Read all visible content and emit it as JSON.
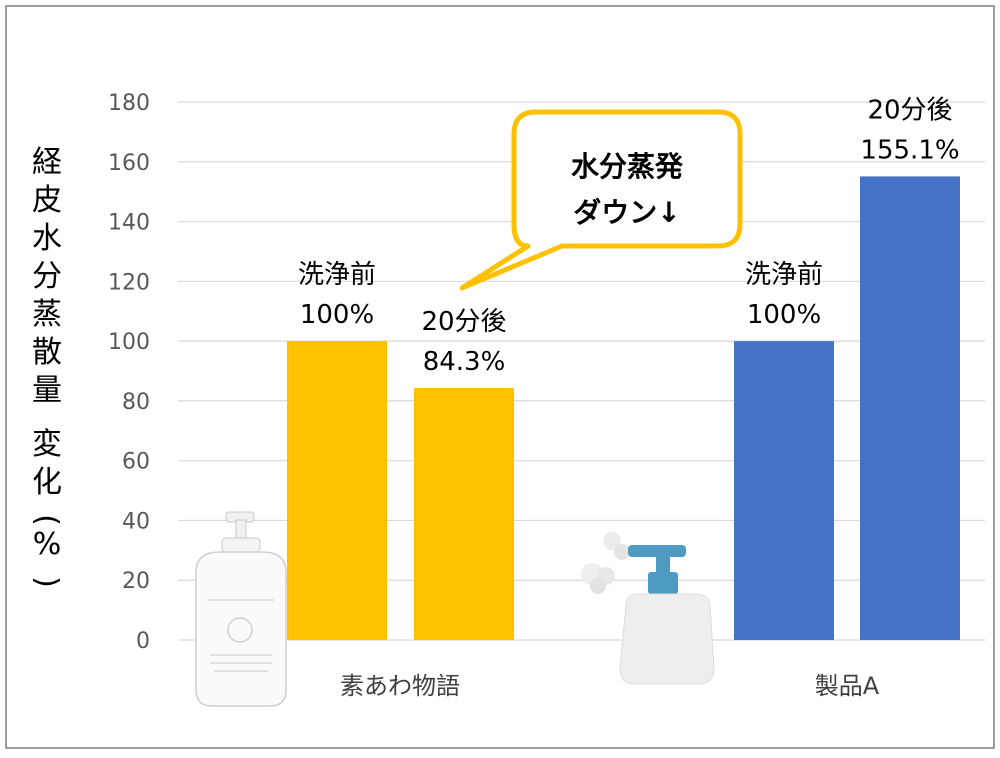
{
  "chart_data": {
    "type": "bar",
    "title": "",
    "xlabel": "",
    "ylabel": "経皮水分蒸散量　変化(%)",
    "ylim": [
      0,
      180
    ],
    "yticks": [
      0,
      20,
      40,
      60,
      80,
      100,
      120,
      140,
      160,
      180
    ],
    "grid": true,
    "legend": "none",
    "categories": [
      "素あわ物語",
      "製品A"
    ],
    "bars": [
      {
        "group": "素あわ物語",
        "label": "洗浄前",
        "value": 100,
        "value_label": "100%",
        "color": "#FFC000"
      },
      {
        "group": "素あわ物語",
        "label": "20分後",
        "value": 84.3,
        "value_label": "84.3%",
        "color": "#FFC000"
      },
      {
        "group": "製品A",
        "label": "洗浄前",
        "value": 100,
        "value_label": "100%",
        "color": "#4472C4"
      },
      {
        "group": "製品A",
        "label": "20分後",
        "value": 155.1,
        "value_label": "155.1%",
        "color": "#4472C4"
      }
    ],
    "annotation": {
      "lines": [
        "水分蒸発",
        "ダウン↓"
      ],
      "border_color": "#FFC000"
    }
  },
  "icons": {
    "bottle_1": "foam-pump-bottle-icon",
    "bottle_2": "pump-bottle-icon"
  }
}
